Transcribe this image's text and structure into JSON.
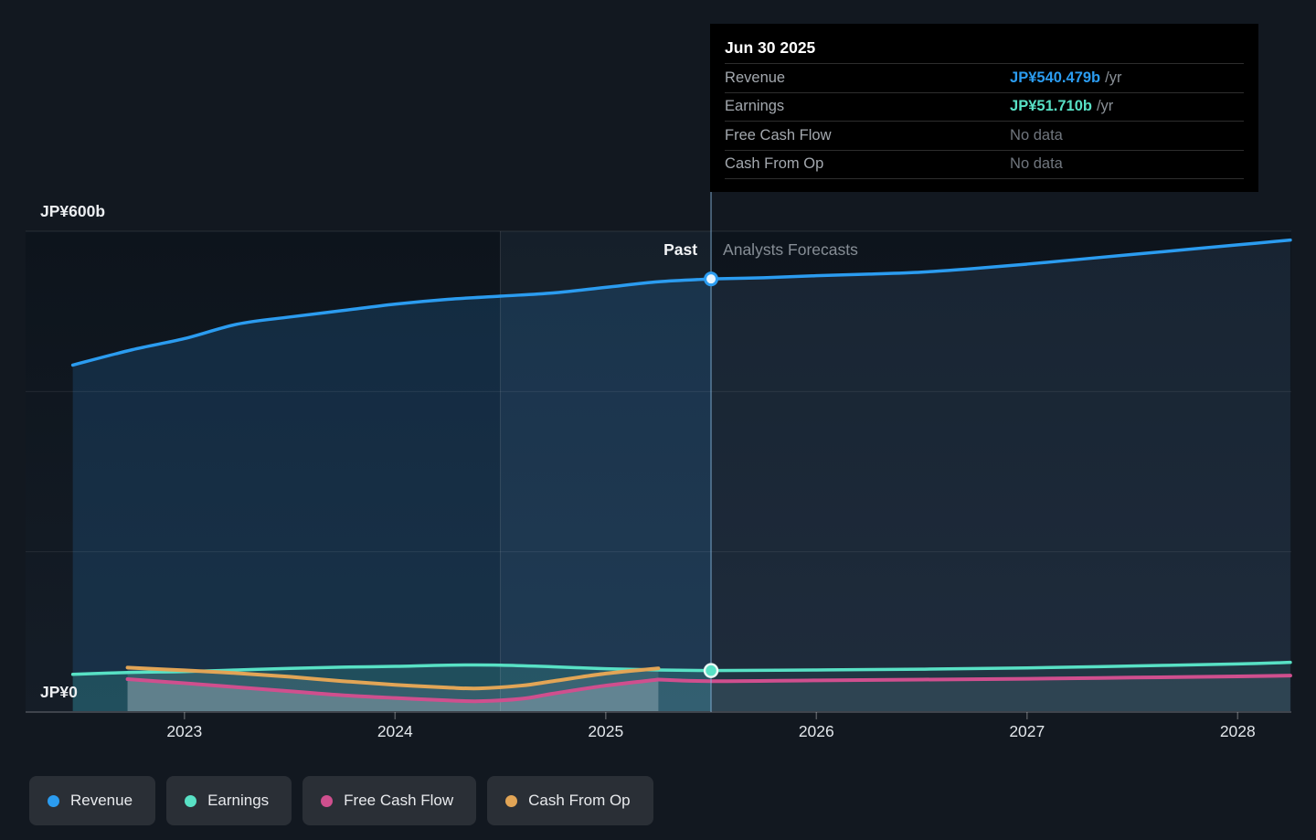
{
  "tooltip": {
    "date": "Jun 30 2025",
    "rows": [
      {
        "label": "Revenue",
        "value": "JP¥540.479b",
        "suffix": " /yr",
        "color": "#2b9cf0"
      },
      {
        "label": "Earnings",
        "value": "JP¥51.710b",
        "suffix": " /yr",
        "color": "#58e1c5"
      },
      {
        "label": "Free Cash Flow",
        "value": "No data",
        "suffix": "",
        "color": ""
      },
      {
        "label": "Cash From Op",
        "value": "No data",
        "suffix": "",
        "color": ""
      }
    ]
  },
  "labels": {
    "past": "Past",
    "forecast": "Analysts Forecasts",
    "y_top": "JP¥600b",
    "y_zero": "JP¥0"
  },
  "x_axis": {
    "ticks": [
      "2023",
      "2024",
      "2025",
      "2026",
      "2027",
      "2028"
    ]
  },
  "legend": [
    {
      "label": "Revenue",
      "color": "#2b9cf0"
    },
    {
      "label": "Earnings",
      "color": "#58e1c5"
    },
    {
      "label": "Free Cash Flow",
      "color": "#cf4f8e"
    },
    {
      "label": "Cash From Op",
      "color": "#e2a556"
    }
  ],
  "chart_data": {
    "type": "area",
    "title": "Past and forecast Revenue / Earnings / Free Cash Flow / Cash From Op",
    "unit": "JP¥ billions per year",
    "y_axis": {
      "min": 0,
      "max": 600,
      "gridlines": [
        200,
        400,
        600
      ],
      "top_label": "JP¥600b",
      "zero_label": "JP¥0"
    },
    "x_ticks": [
      2023,
      2024,
      2025,
      2026,
      2027,
      2028
    ],
    "divider_x": 2025.5,
    "highlight_band": [
      2024.5,
      2025.5
    ],
    "markers": [
      {
        "series": "Revenue",
        "x": 2025.5,
        "value": 540.479
      },
      {
        "series": "Earnings",
        "x": 2025.5,
        "value": 51.71
      }
    ],
    "series": [
      {
        "name": "Revenue",
        "color": "#2b9cf0",
        "past": [
          [
            2022.47,
            433
          ],
          [
            2022.75,
            452
          ],
          [
            2023,
            466
          ],
          [
            2023.25,
            484
          ],
          [
            2023.5,
            493
          ],
          [
            2023.75,
            501
          ],
          [
            2024,
            509
          ],
          [
            2024.25,
            515
          ],
          [
            2024.5,
            519
          ],
          [
            2024.75,
            523
          ],
          [
            2025,
            530
          ],
          [
            2025.25,
            537
          ],
          [
            2025.5,
            540.479
          ]
        ],
        "forecast": [
          [
            2025.5,
            540.479
          ],
          [
            2025.75,
            542
          ],
          [
            2026,
            544.5
          ],
          [
            2026.25,
            546.5
          ],
          [
            2026.5,
            549
          ],
          [
            2026.75,
            553.5
          ],
          [
            2027,
            559
          ],
          [
            2027.25,
            565
          ],
          [
            2027.5,
            571
          ],
          [
            2027.75,
            577
          ],
          [
            2028,
            583
          ],
          [
            2028.25,
            589
          ]
        ]
      },
      {
        "name": "Earnings",
        "color": "#58e1c5",
        "past": [
          [
            2022.47,
            47
          ],
          [
            2022.75,
            49.5
          ],
          [
            2023,
            50.5
          ],
          [
            2023.25,
            52.5
          ],
          [
            2023.5,
            54.5
          ],
          [
            2023.75,
            56
          ],
          [
            2024,
            57
          ],
          [
            2024.25,
            58.5
          ],
          [
            2024.5,
            58.5
          ],
          [
            2024.75,
            56.5
          ],
          [
            2025,
            54
          ],
          [
            2025.25,
            52.5
          ],
          [
            2025.5,
            51.71
          ]
        ],
        "forecast": [
          [
            2025.5,
            51.71
          ],
          [
            2026,
            52.5
          ],
          [
            2026.5,
            53.5
          ],
          [
            2027,
            55
          ],
          [
            2027.5,
            57.5
          ],
          [
            2028,
            60
          ],
          [
            2028.25,
            62
          ]
        ]
      },
      {
        "name": "Free Cash Flow",
        "color": "#cf4f8e",
        "past": [
          [
            2022.73,
            41
          ],
          [
            2023,
            36
          ],
          [
            2023.25,
            31
          ],
          [
            2023.5,
            26
          ],
          [
            2023.75,
            21
          ],
          [
            2024,
            17.5
          ],
          [
            2024.25,
            14.5
          ],
          [
            2024.4,
            13.5
          ],
          [
            2024.6,
            16.5
          ],
          [
            2024.75,
            23
          ],
          [
            2025,
            33
          ],
          [
            2025.25,
            40.5
          ]
        ],
        "forecast": [
          [
            2025.25,
            40.5
          ],
          [
            2025.5,
            38.5
          ],
          [
            2026,
            39.5
          ],
          [
            2026.5,
            40.5
          ],
          [
            2027,
            41.5
          ],
          [
            2027.5,
            43
          ],
          [
            2028,
            44.5
          ],
          [
            2028.25,
            45.5
          ]
        ]
      },
      {
        "name": "Cash From Op",
        "color": "#e2a556",
        "past": [
          [
            2022.73,
            55.5
          ],
          [
            2023,
            52
          ],
          [
            2023.25,
            48.5
          ],
          [
            2023.5,
            44
          ],
          [
            2023.75,
            38.5
          ],
          [
            2024,
            34
          ],
          [
            2024.25,
            30.5
          ],
          [
            2024.4,
            29.5
          ],
          [
            2024.6,
            33
          ],
          [
            2024.75,
            38.5
          ],
          [
            2025,
            48
          ],
          [
            2025.25,
            54.5
          ]
        ],
        "forecast": []
      }
    ]
  }
}
